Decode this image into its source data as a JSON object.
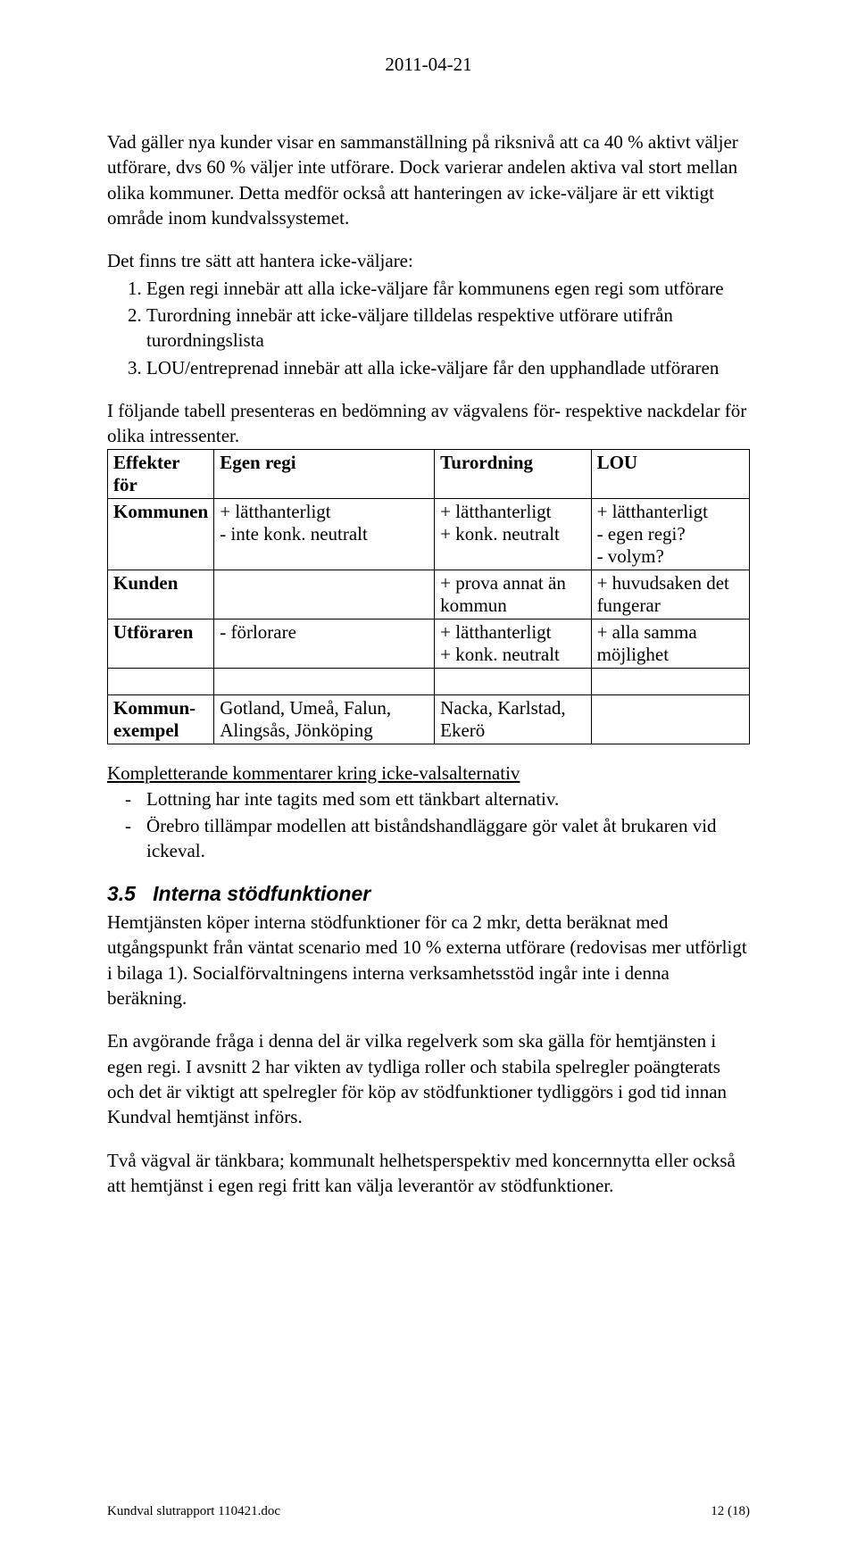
{
  "header": {
    "date": "2011-04-21"
  },
  "para1": "Vad gäller nya kunder visar en sammanställning på riksnivå att ca 40 % aktivt väljer utförare, dvs 60 % väljer inte utförare. Dock varierar andelen aktiva val stort mellan olika kommuner. Detta medför också att hanteringen av icke-väljare är ett viktigt område inom kundvalssystemet.",
  "list_intro": "Det finns tre sätt att hantera icke-väljare:",
  "list_items": [
    "Egen regi innebär att alla icke-väljare får kommunens egen regi som utförare",
    "Turordning innebär att icke-väljare tilldelas respektive utförare utifrån turordningslista",
    "LOU/entreprenad innebär att alla icke-väljare får den upphandlade utföraren"
  ],
  "table_intro": "I följande tabell presenteras en bedömning av vägvalens för- respektive nackdelar för olika intressenter.",
  "table": {
    "headers": [
      "Effekter för",
      "Egen regi",
      "Turordning",
      "LOU"
    ],
    "rows": [
      {
        "label": "Kommunen",
        "c1": "+ lätthanterligt\n- inte konk. neutralt",
        "c2": "+ lätthanterligt\n+ konk. neutralt",
        "c3": "+ lätthanterligt\n- egen regi?\n- volym?"
      },
      {
        "label": "Kunden",
        "c1": "",
        "c2": "+ prova annat än kommun",
        "c3": "+ huvudsaken det fungerar"
      },
      {
        "label": "Utföraren",
        "c1": "- förlorare",
        "c2": "+ lätthanterligt\n+ konk. neutralt",
        "c3": "+ alla samma möjlighet"
      },
      {
        "spacer": true
      },
      {
        "label": "Kommun-\nexempel",
        "c1": "Gotland, Umeå, Falun, Alingsås, Jönköping",
        "c2": "Nacka, Karlstad, Ekerö",
        "c3": ""
      }
    ]
  },
  "sub_heading": "Kompletterande kommentarer kring icke-valsalternativ",
  "sub_items": [
    "Lottning har inte tagits med som ett tänkbart alternativ.",
    "Örebro tillämpar modellen att biståndshandläggare gör valet åt brukaren vid ickeval."
  ],
  "section": {
    "num": "3.5",
    "title": "Interna stödfunktioner"
  },
  "para2": "Hemtjänsten köper interna stödfunktioner för ca 2 mkr, detta beräknat med utgångspunkt från väntat scenario med 10 % externa utförare (redovisas mer utförligt i bilaga 1). Socialförvaltningens interna verksamhetsstöd ingår inte i denna beräkning.",
  "para3": "En avgörande fråga i denna del är vilka regelverk som ska gälla för hemtjänsten i egen regi. I avsnitt 2 har vikten av tydliga roller och stabila spelregler poängterats och det är viktigt att spelregler för köp av stödfunktioner tydliggörs i god tid innan Kundval hemtjänst införs.",
  "para4": "Två vägval är tänkbara; kommunalt helhetsperspektiv med koncernnytta eller också att hemtjänst i egen regi fritt kan välja leverantör av stödfunktioner.",
  "footer": {
    "left": "Kundval slutrapport 110421.doc",
    "right": "12 (18)"
  }
}
